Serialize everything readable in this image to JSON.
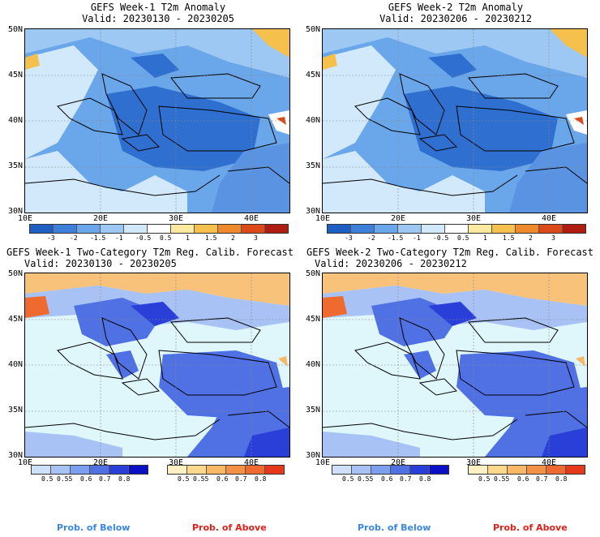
{
  "panels": [
    {
      "title": "GEFS Week-1 T2m Anomaly",
      "valid": "Valid: 20230130 - 20230205"
    },
    {
      "title": "GEFS Week-2 T2m Anomaly",
      "valid": "Valid: 20230206 - 20230212"
    },
    {
      "title": "GEFS Week-1 Two-Category T2m Reg. Calib. Forecast",
      "valid": "Valid: 20230130 - 20230205"
    },
    {
      "title": "GEFS Week-2 Two-Category T2m Reg. Calib. Forecast",
      "valid": "Valid: 20230206 - 20230212"
    }
  ],
  "lat_labels": [
    "50N",
    "45N",
    "40N",
    "35N",
    "30N"
  ],
  "lon_labels": [
    "10E",
    "20E",
    "30E",
    "40E"
  ],
  "anomaly_colorbar": {
    "ticks": [
      "-3",
      "-2",
      "-1.5",
      "-1",
      "-0.5",
      "0.5",
      "1",
      "1.5",
      "2",
      "3"
    ],
    "colors": [
      "#1f5fc4",
      "#3d7fd9",
      "#6aa6ea",
      "#9cc8f3",
      "#d2e9fb",
      "#ffffff",
      "#fde9a0",
      "#f6c04c",
      "#ee8a2b",
      "#dd4a1a",
      "#b01c10"
    ]
  },
  "below_colorbar": {
    "ticks": [
      "0.5",
      "0.55",
      "0.6",
      "0.7",
      "0.8"
    ],
    "colors": [
      "#cfe0fb",
      "#a8c2f5",
      "#7d9ff0",
      "#4f71e3",
      "#2a3fd8",
      "#0b10c7"
    ]
  },
  "above_colorbar": {
    "ticks": [
      "0.5",
      "0.55",
      "0.6",
      "0.7",
      "0.8"
    ],
    "colors": [
      "#fdf0c2",
      "#fbd88a",
      "#f8b866",
      "#f39245",
      "#ee6a2e",
      "#e6391c"
    ]
  },
  "prob_below": "Prob. of Below",
  "prob_above": "Prob. of Above",
  "colors": {
    "map_blue_dark": "#2f6fd0",
    "map_blue_mid": "#5b93e3",
    "map_blue_light": "#a8cdf3",
    "prob_blue": "#4f6fe4",
    "prob_cyan": "#dff6fb",
    "prob_orange": "#f8c27a"
  }
}
